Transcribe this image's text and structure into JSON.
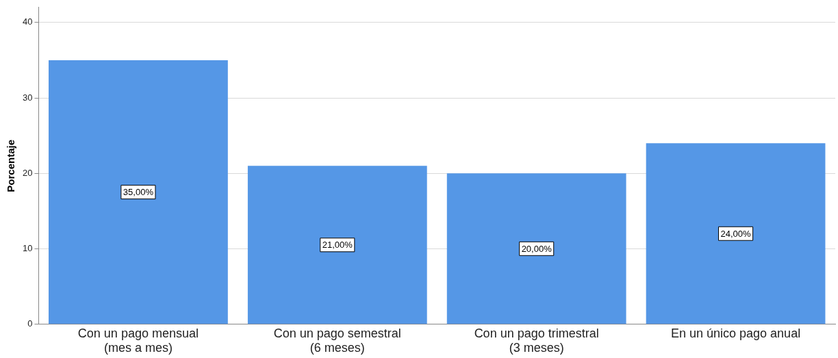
{
  "chart_data": {
    "type": "bar",
    "ylabel": "Porcentaje",
    "categories": [
      "Con un pago mensual\n(mes a mes)",
      "Con un pago semestral\n(6 meses)",
      "Con un pago trimestral\n(3 meses)",
      "En un único pago anual"
    ],
    "values": [
      35,
      21,
      20,
      24
    ],
    "value_labels": [
      "35,00%",
      "21,00%",
      "20,00%",
      "24,00%"
    ],
    "color": "#5597e6",
    "ylim": [
      0,
      42
    ],
    "yticks": [
      0,
      10,
      20,
      30,
      40
    ],
    "grid": "y",
    "legend": false
  }
}
